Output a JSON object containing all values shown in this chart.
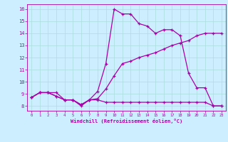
{
  "xlabel": "Windchill (Refroidissement éolien,°C)",
  "bg_color": "#cceeff",
  "line_color": "#aa00aa",
  "grid_color": "#aadddd",
  "xlim": [
    -0.5,
    23.5
  ],
  "ylim": [
    7.6,
    16.4
  ],
  "xticks": [
    0,
    1,
    2,
    3,
    4,
    5,
    6,
    7,
    8,
    9,
    10,
    11,
    12,
    13,
    14,
    15,
    16,
    17,
    18,
    19,
    20,
    21,
    22,
    23
  ],
  "yticks": [
    8,
    9,
    10,
    11,
    12,
    13,
    14,
    15,
    16
  ],
  "line1_x": [
    0,
    1,
    2,
    3,
    4,
    5,
    6,
    7,
    8,
    9,
    10,
    11,
    12,
    13,
    14,
    15,
    16,
    17,
    18,
    19,
    20,
    21,
    22,
    23
  ],
  "line1_y": [
    8.7,
    9.1,
    9.1,
    8.8,
    8.5,
    8.5,
    8.1,
    8.5,
    8.5,
    8.3,
    8.3,
    8.3,
    8.3,
    8.3,
    8.3,
    8.3,
    8.3,
    8.3,
    8.3,
    8.3,
    8.3,
    8.3,
    8.0,
    8.0
  ],
  "line2_x": [
    0,
    1,
    2,
    3,
    4,
    5,
    6,
    7,
    8,
    9,
    10,
    11,
    12,
    13,
    14,
    15,
    16,
    17,
    18,
    19,
    20,
    21,
    22,
    23
  ],
  "line2_y": [
    8.7,
    9.1,
    9.1,
    9.1,
    8.5,
    8.5,
    8.1,
    8.5,
    8.6,
    9.4,
    10.5,
    11.5,
    11.7,
    12.0,
    12.2,
    12.4,
    12.7,
    13.0,
    13.2,
    13.4,
    13.8,
    14.0,
    14.0,
    14.0
  ],
  "line3_x": [
    0,
    1,
    2,
    3,
    4,
    5,
    6,
    7,
    8,
    9,
    10,
    11,
    12,
    13,
    14,
    15,
    16,
    17,
    18,
    19,
    20,
    21,
    22,
    23
  ],
  "line3_y": [
    8.7,
    9.1,
    9.1,
    8.8,
    8.5,
    8.5,
    8.0,
    8.5,
    9.2,
    11.5,
    16.0,
    15.6,
    15.6,
    14.8,
    14.6,
    14.0,
    14.3,
    14.3,
    13.8,
    10.7,
    9.5,
    9.5,
    8.0,
    8.0
  ]
}
